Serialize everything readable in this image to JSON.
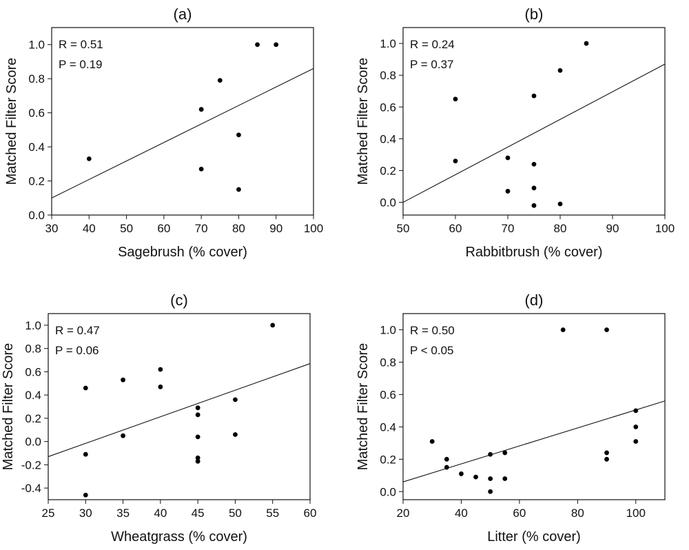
{
  "chart_data": [
    {
      "type": "scatter",
      "title": "(a)",
      "xlabel": "Sagebrush (% cover)",
      "ylabel": "Matched Filter Score",
      "xlim": [
        30,
        100
      ],
      "ylim": [
        0,
        1.1
      ],
      "xticks": [
        30,
        40,
        50,
        60,
        70,
        80,
        90,
        100
      ],
      "yticks": [
        0,
        0.2,
        0.4,
        0.6,
        0.8,
        1.0
      ],
      "ytick_labels": [
        "0.0",
        "0.2",
        "0.4",
        "0.6",
        "0.8",
        "1.0"
      ],
      "annotations": [
        "R = 0.51",
        "P = 0.19"
      ],
      "points": [
        [
          40,
          0.33
        ],
        [
          70,
          0.62
        ],
        [
          70,
          0.27
        ],
        [
          75,
          0.79
        ],
        [
          80,
          0.47
        ],
        [
          80,
          0.15
        ],
        [
          85,
          1.0
        ],
        [
          90,
          1.0
        ]
      ],
      "fit_line": [
        [
          30,
          0.1
        ],
        [
          100,
          0.86
        ]
      ],
      "grid": false
    },
    {
      "type": "scatter",
      "title": "(b)",
      "xlabel": "Rabbitbrush (% cover)",
      "ylabel": "Matched Filter Score",
      "xlim": [
        50,
        100
      ],
      "ylim": [
        -0.08,
        1.1
      ],
      "xticks": [
        50,
        60,
        70,
        80,
        90,
        100
      ],
      "yticks": [
        0,
        0.2,
        0.4,
        0.6,
        0.8,
        1.0
      ],
      "ytick_labels": [
        "0.0",
        "0.2",
        "0.4",
        "0.6",
        "0.8",
        "1.0"
      ],
      "annotations": [
        "R = 0.24",
        "P = 0.37"
      ],
      "points": [
        [
          60,
          0.65
        ],
        [
          60,
          0.26
        ],
        [
          70,
          0.28
        ],
        [
          70,
          0.07
        ],
        [
          75,
          0.67
        ],
        [
          75,
          0.24
        ],
        [
          75,
          0.09
        ],
        [
          75,
          -0.02
        ],
        [
          80,
          0.83
        ],
        [
          80,
          -0.01
        ],
        [
          85,
          1.0
        ]
      ],
      "fit_line": [
        [
          50,
          0.0
        ],
        [
          100,
          0.87
        ]
      ],
      "grid": false
    },
    {
      "type": "scatter",
      "title": "(c)",
      "xlabel": "Wheatgrass (% cover)",
      "ylabel": "Matched Filter Score",
      "xlim": [
        25,
        60
      ],
      "ylim": [
        -0.5,
        1.1
      ],
      "xticks": [
        25,
        30,
        35,
        40,
        45,
        50,
        55,
        60
      ],
      "yticks": [
        -0.4,
        -0.2,
        0,
        0.2,
        0.4,
        0.6,
        0.8,
        1.0
      ],
      "ytick_labels": [
        "-0.4",
        "-0.2",
        "0.0",
        "0.2",
        "0.4",
        "0.6",
        "0.8",
        "1.0"
      ],
      "annotations": [
        "R = 0.47",
        "P = 0.06"
      ],
      "points": [
        [
          30,
          0.46
        ],
        [
          30,
          -0.11
        ],
        [
          30,
          -0.46
        ],
        [
          35,
          0.53
        ],
        [
          35,
          0.05
        ],
        [
          40,
          0.62
        ],
        [
          40,
          0.47
        ],
        [
          45,
          0.29
        ],
        [
          45,
          0.23
        ],
        [
          45,
          0.04
        ],
        [
          45,
          -0.14
        ],
        [
          45,
          -0.17
        ],
        [
          50,
          0.36
        ],
        [
          50,
          0.06
        ],
        [
          55,
          1.0
        ]
      ],
      "fit_line": [
        [
          25,
          -0.13
        ],
        [
          60,
          0.67
        ]
      ],
      "grid": false
    },
    {
      "type": "scatter",
      "title": "(d)",
      "xlabel": "Litter (% cover)",
      "ylabel": "Matched Filter Score",
      "xlim": [
        20,
        110
      ],
      "ylim": [
        -0.05,
        1.1
      ],
      "xticks": [
        20,
        40,
        60,
        80,
        100
      ],
      "yticks": [
        0,
        0.2,
        0.4,
        0.6,
        0.8,
        1.0
      ],
      "ytick_labels": [
        "0.0",
        "0.2",
        "0.4",
        "0.6",
        "0.8",
        "1.0"
      ],
      "annotations": [
        "R = 0.50",
        "P < 0.05"
      ],
      "points": [
        [
          30,
          0.31
        ],
        [
          35,
          0.2
        ],
        [
          35,
          0.15
        ],
        [
          40,
          0.11
        ],
        [
          45,
          0.09
        ],
        [
          50,
          0.23
        ],
        [
          50,
          0.08
        ],
        [
          50,
          0.0
        ],
        [
          55,
          0.24
        ],
        [
          55,
          0.08
        ],
        [
          75,
          1.0
        ],
        [
          90,
          1.0
        ],
        [
          90,
          0.24
        ],
        [
          90,
          0.2
        ],
        [
          100,
          0.5
        ],
        [
          100,
          0.4
        ],
        [
          100,
          0.31
        ]
      ],
      "fit_line": [
        [
          20,
          0.06
        ],
        [
          110,
          0.56
        ]
      ],
      "grid": false
    }
  ]
}
